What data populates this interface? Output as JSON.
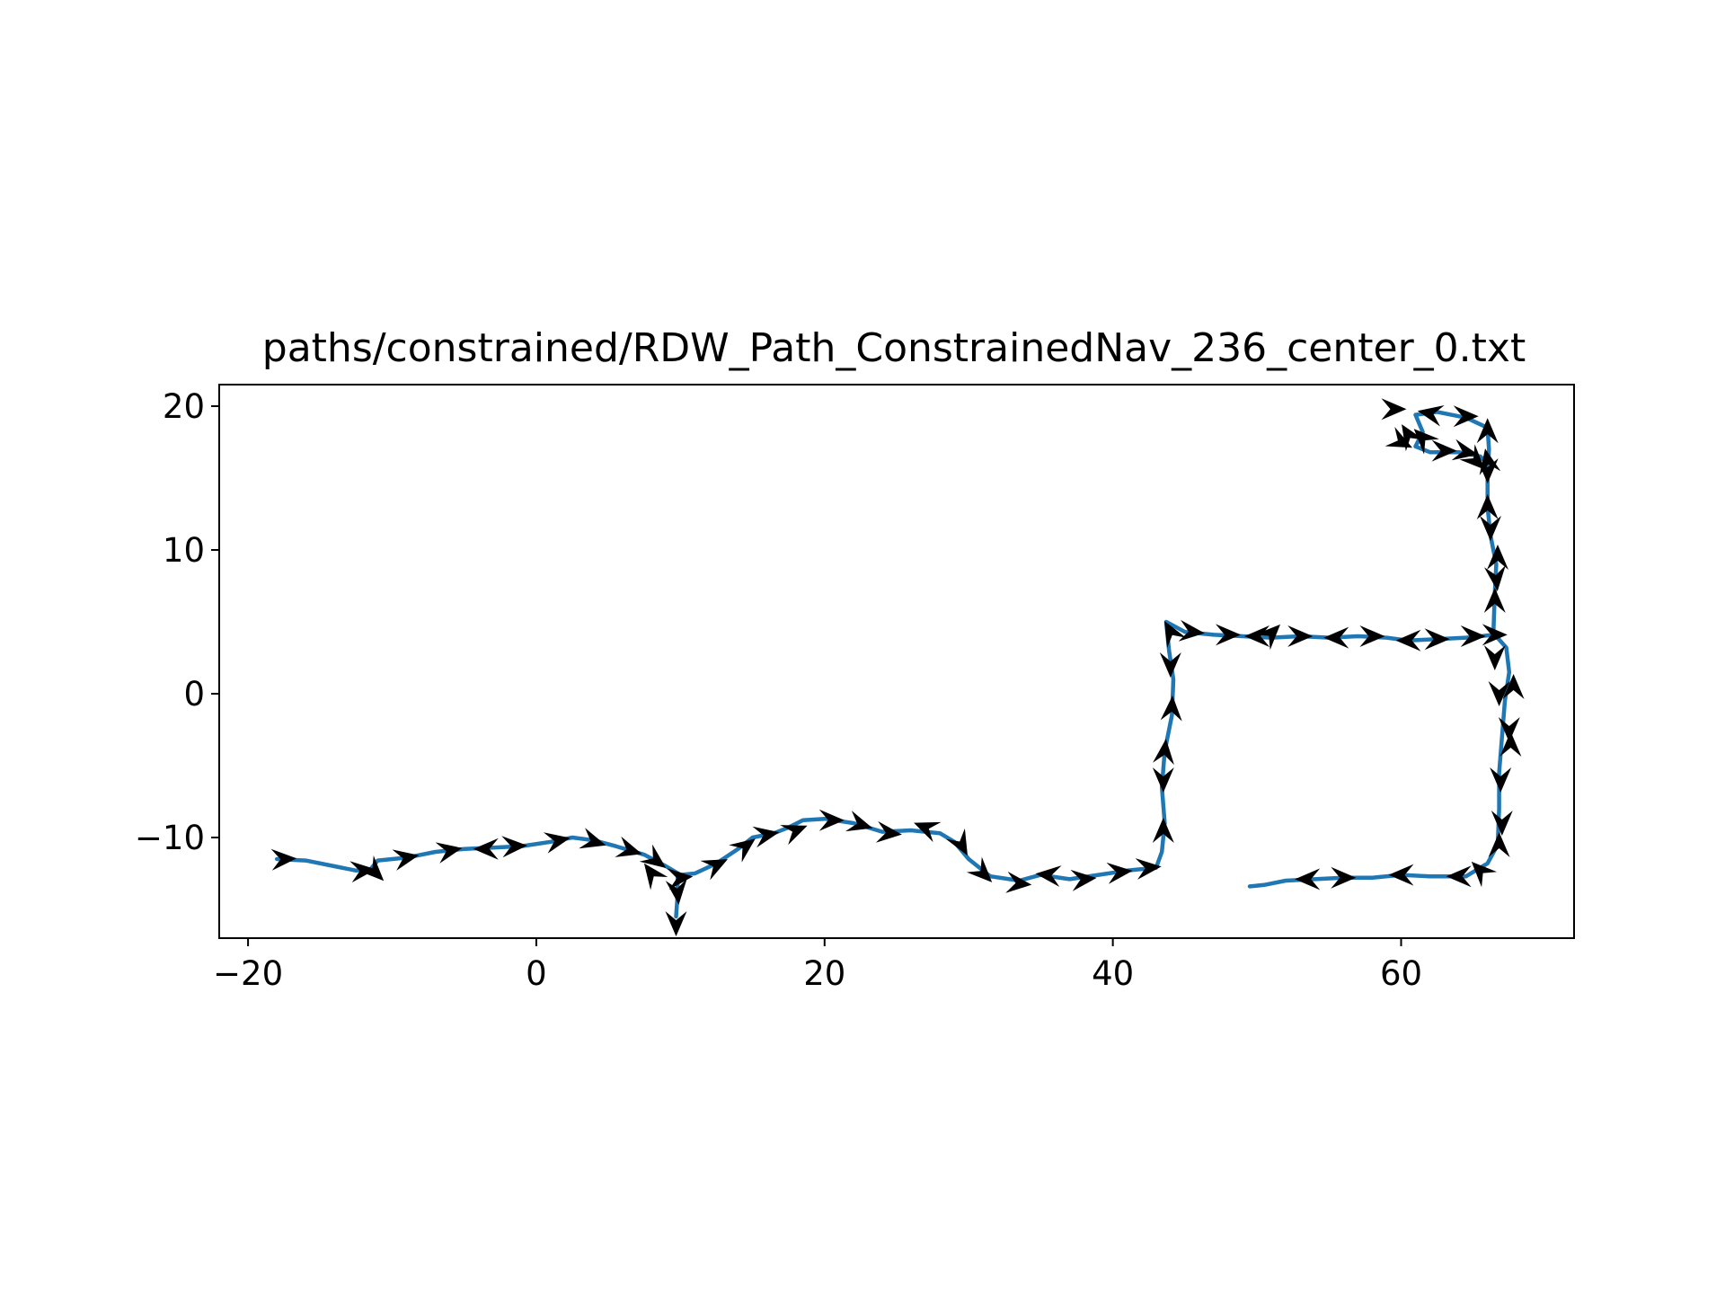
{
  "chart_data": {
    "type": "line",
    "title": "paths/constrained/RDW_Path_ConstrainedNav_236_center_0.txt",
    "xlabel": "",
    "ylabel": "",
    "xlim": [
      -22,
      72
    ],
    "ylim": [
      -17,
      21.5
    ],
    "xticks": [
      -20,
      0,
      20,
      40,
      60
    ],
    "yticks": [
      -10,
      0,
      10,
      20
    ],
    "xtick_labels": [
      "−20",
      "0",
      "20",
      "40",
      "60"
    ],
    "ytick_labels": [
      "−10",
      "0",
      "10",
      "20"
    ],
    "grid": false,
    "series": [
      {
        "color": "#1f77b4",
        "points": [
          [
            -18.0,
            -11.5
          ],
          [
            -16.0,
            -11.6
          ],
          [
            -14.0,
            -12.0
          ],
          [
            -12.5,
            -12.3
          ],
          [
            -11.5,
            -12.2
          ],
          [
            -11.0,
            -11.6
          ],
          [
            -9.0,
            -11.4
          ],
          [
            -7.0,
            -11.0
          ],
          [
            -5.0,
            -10.8
          ],
          [
            -3.0,
            -10.7
          ],
          [
            -1.0,
            -10.6
          ],
          [
            1.0,
            -10.3
          ],
          [
            2.5,
            -10.0
          ],
          [
            4.0,
            -10.2
          ],
          [
            5.5,
            -10.6
          ],
          [
            7.5,
            -11.2
          ],
          [
            9.0,
            -12.0
          ],
          [
            10.0,
            -12.6
          ],
          [
            11.0,
            -12.5
          ],
          [
            12.5,
            -11.8
          ],
          [
            14.0,
            -10.8
          ],
          [
            15.0,
            -10.0
          ],
          [
            16.5,
            -9.7
          ],
          [
            17.5,
            -9.3
          ],
          [
            18.5,
            -8.8
          ],
          [
            20.0,
            -8.7
          ],
          [
            22.0,
            -9.0
          ],
          [
            24.0,
            -9.6
          ],
          [
            26.0,
            -9.5
          ],
          [
            28.0,
            -9.7
          ],
          [
            29.0,
            -10.3
          ],
          [
            30.0,
            -11.5
          ],
          [
            31.5,
            -12.7
          ],
          [
            33.5,
            -13.0
          ],
          [
            35.0,
            -12.6
          ],
          [
            37.0,
            -12.9
          ],
          [
            39.0,
            -12.6
          ],
          [
            41.0,
            -12.3
          ],
          [
            43.0,
            -12.1
          ],
          [
            43.4,
            -11.0
          ],
          [
            43.6,
            -9.0
          ],
          [
            43.4,
            -6.5
          ],
          [
            43.6,
            -4.0
          ],
          [
            44.1,
            -1.5
          ],
          [
            44.2,
            1.0
          ],
          [
            43.9,
            3.0
          ],
          [
            43.7,
            5.0
          ],
          [
            45.0,
            4.3
          ],
          [
            47.0,
            4.1
          ],
          [
            49.0,
            4.0
          ],
          [
            51.0,
            3.9
          ],
          [
            53.0,
            4.0
          ],
          [
            55.0,
            3.9
          ],
          [
            57.0,
            4.0
          ],
          [
            59.0,
            3.9
          ],
          [
            60.5,
            3.7
          ],
          [
            62.5,
            3.8
          ],
          [
            64.5,
            3.9
          ],
          [
            66.5,
            4.1
          ],
          [
            67.3,
            3.2
          ],
          [
            67.5,
            1.5
          ],
          [
            67.2,
            -0.5
          ],
          [
            67.0,
            -3.0
          ],
          [
            66.8,
            -5.5
          ],
          [
            66.8,
            -8.0
          ],
          [
            66.7,
            -10.5
          ],
          [
            66.0,
            -11.8
          ],
          [
            64.5,
            -12.7
          ],
          [
            62.0,
            -12.7
          ],
          [
            60.0,
            -12.6
          ],
          [
            58.0,
            -12.8
          ],
          [
            56.0,
            -12.8
          ],
          [
            54.0,
            -12.9
          ],
          [
            52.0,
            -13.0
          ],
          [
            50.5,
            -13.3
          ],
          [
            49.5,
            -13.4
          ]
        ]
      },
      {
        "color": "#1f77b4",
        "points": [
          [
            9.8,
            -12.6
          ],
          [
            9.8,
            -14.0
          ],
          [
            9.7,
            -15.5
          ]
        ]
      },
      {
        "color": "#1f77b4",
        "points": [
          [
            66.4,
            4.2
          ],
          [
            66.5,
            7.0
          ],
          [
            66.6,
            9.0
          ],
          [
            66.2,
            11.0
          ],
          [
            66.0,
            13.0
          ],
          [
            66.0,
            15.0
          ],
          [
            66.1,
            17.0
          ],
          [
            66.0,
            18.5
          ],
          [
            64.5,
            19.2
          ],
          [
            62.5,
            19.6
          ],
          [
            61.0,
            19.4
          ],
          [
            61.5,
            18.2
          ],
          [
            61.0,
            17.2
          ],
          [
            62.0,
            16.8
          ],
          [
            64.0,
            16.8
          ],
          [
            65.5,
            16.5
          ],
          [
            66.0,
            16.0
          ]
        ]
      }
    ],
    "arrows": [
      [
        -17.5,
        -11.5,
        1,
        0.05
      ],
      [
        -12.0,
        -12.3,
        1,
        0.1
      ],
      [
        -11.2,
        -12.4,
        0.7,
        -0.7
      ],
      [
        -9.0,
        -11.4,
        1,
        0.2
      ],
      [
        -6.0,
        -10.9,
        1,
        0.2
      ],
      [
        -3.5,
        -10.8,
        -1,
        0
      ],
      [
        -1.5,
        -10.6,
        1,
        0.05
      ],
      [
        1.5,
        -10.2,
        1,
        0.2
      ],
      [
        4.0,
        -10.3,
        1,
        -0.3
      ],
      [
        6.5,
        -10.9,
        1,
        -0.3
      ],
      [
        8.3,
        -11.6,
        0.8,
        -0.6
      ],
      [
        8.0,
        -12.5,
        -0.6,
        0.8
      ],
      [
        10.0,
        -12.8,
        1,
        0.1
      ],
      [
        9.8,
        -13.8,
        0.1,
        -1
      ],
      [
        9.7,
        -16.0,
        0,
        -1
      ],
      [
        12.5,
        -11.9,
        1,
        0.5
      ],
      [
        14.5,
        -10.6,
        0.8,
        0.6
      ],
      [
        16.0,
        -9.8,
        1,
        0.2
      ],
      [
        18.0,
        -9.5,
        1,
        0.4
      ],
      [
        20.5,
        -8.8,
        1,
        0
      ],
      [
        22.5,
        -9.1,
        1,
        -0.3
      ],
      [
        24.5,
        -9.7,
        1,
        -0.1
      ],
      [
        27.0,
        -9.3,
        -1,
        0.4
      ],
      [
        29.5,
        -10.5,
        0.5,
        -0.9
      ],
      [
        31.0,
        -12.5,
        0.7,
        -0.7
      ],
      [
        33.5,
        -13.2,
        1,
        -0.1
      ],
      [
        35.5,
        -12.6,
        -1,
        0.1
      ],
      [
        38.0,
        -12.9,
        1,
        0.1
      ],
      [
        40.5,
        -12.4,
        1,
        0.1
      ],
      [
        42.5,
        -12.1,
        1,
        0.1
      ],
      [
        43.5,
        -9.5,
        0,
        1
      ],
      [
        43.5,
        -6.0,
        0,
        -1
      ],
      [
        43.6,
        -4.0,
        0.1,
        1
      ],
      [
        44.1,
        -1.0,
        0.05,
        1
      ],
      [
        44.0,
        2.0,
        0,
        -1
      ],
      [
        44.0,
        4.3,
        -0.5,
        0.9
      ],
      [
        45.5,
        4.3,
        1,
        -0.1
      ],
      [
        48.0,
        4.1,
        1,
        0
      ],
      [
        50.0,
        4.0,
        -1,
        0
      ],
      [
        51.0,
        4.2,
        0.7,
        0.7
      ],
      [
        53.0,
        4.0,
        1,
        0
      ],
      [
        55.5,
        3.9,
        -1,
        0
      ],
      [
        58.0,
        4.0,
        1,
        0
      ],
      [
        60.5,
        3.7,
        -1,
        0
      ],
      [
        62.5,
        3.8,
        1,
        0
      ],
      [
        65.0,
        4.0,
        1,
        0
      ],
      [
        66.5,
        4.1,
        1,
        0
      ],
      [
        66.5,
        2.5,
        0,
        -1
      ],
      [
        66.8,
        0.0,
        0,
        -1
      ],
      [
        67.8,
        0.5,
        0,
        1
      ],
      [
        67.5,
        -2.5,
        0,
        -1
      ],
      [
        67.6,
        -3.5,
        0,
        1
      ],
      [
        66.9,
        -6.0,
        0,
        -1
      ],
      [
        67.0,
        -9.0,
        0,
        -1
      ],
      [
        66.8,
        -10.5,
        0,
        1
      ],
      [
        65.5,
        -12.3,
        -0.7,
        0.7
      ],
      [
        64.0,
        -12.7,
        -1,
        0
      ],
      [
        60.0,
        -12.6,
        -1,
        0
      ],
      [
        56.0,
        -12.8,
        1,
        0
      ],
      [
        53.5,
        -12.9,
        -1,
        0
      ],
      [
        66.5,
        6.5,
        0,
        1
      ],
      [
        66.6,
        8.0,
        0.1,
        -1
      ],
      [
        66.7,
        9.5,
        0,
        1
      ],
      [
        66.2,
        11.5,
        0,
        -1
      ],
      [
        66.0,
        13.0,
        0,
        1
      ],
      [
        66.0,
        15.5,
        0,
        -1
      ],
      [
        66.0,
        18.3,
        0,
        1
      ],
      [
        64.5,
        19.3,
        1,
        0
      ],
      [
        62.0,
        19.5,
        -1,
        0.2
      ],
      [
        59.5,
        19.8,
        1,
        0
      ],
      [
        60.5,
        18.0,
        -0.5,
        0.8
      ],
      [
        61.5,
        17.8,
        -0.7,
        0.7
      ],
      [
        60.0,
        17.5,
        1,
        -0.5
      ],
      [
        63.0,
        16.9,
        1,
        0
      ],
      [
        64.5,
        16.8,
        1,
        -0.2
      ],
      [
        65.2,
        16.2,
        0.7,
        -0.7
      ],
      [
        66.0,
        16.2,
        -0.2,
        1
      ]
    ]
  }
}
